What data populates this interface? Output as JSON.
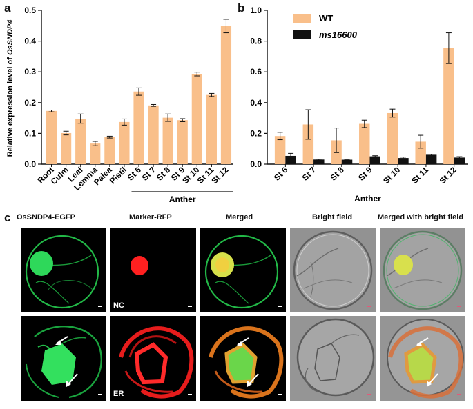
{
  "panel_labels": {
    "a": "a",
    "b": "b",
    "c": "c"
  },
  "colors": {
    "wt_bar": "#F9BF8A",
    "mutant_bar": "#111111",
    "gfp": "#22c84a",
    "rfp": "#ff1f1f",
    "scalebar": "#ffffff",
    "scalebar_bf": "#e25a7a"
  },
  "chart_data": [
    {
      "type": "bar",
      "title": "",
      "ylabel_prefix": "Relative expression level of ",
      "ylabel_gene": "OsSNDP4",
      "xlabel": "",
      "group_label": "Anther",
      "categories": [
        "Root",
        "Culm",
        "Leaf",
        "Lemma",
        "Palea",
        "Pistil",
        "St 6",
        "St 7",
        "St 8",
        "St 9",
        "St 10",
        "St 11",
        "St 12"
      ],
      "values": [
        0.173,
        0.101,
        0.148,
        0.067,
        0.088,
        0.137,
        0.236,
        0.191,
        0.151,
        0.143,
        0.293,
        0.225,
        0.449
      ],
      "errors": [
        0.003,
        0.006,
        0.015,
        0.007,
        0.003,
        0.01,
        0.012,
        0.003,
        0.012,
        0.005,
        0.006,
        0.005,
        0.022
      ],
      "ylim": [
        0,
        0.5
      ],
      "yticks": [
        "0.0",
        "0.1",
        "0.2",
        "0.3",
        "0.4",
        "0.5"
      ]
    },
    {
      "type": "bar",
      "title": "",
      "xlabel": "Anther",
      "ylabel": "",
      "categories": [
        "St 6",
        "St 7",
        "St 8",
        "St 9",
        "St 10",
        "St 11",
        "St 12"
      ],
      "series": [
        {
          "name": "WT",
          "values": [
            0.183,
            0.258,
            0.155,
            0.262,
            0.332,
            0.146,
            0.754
          ],
          "errors": [
            0.024,
            0.096,
            0.08,
            0.024,
            0.026,
            0.042,
            0.1
          ]
        },
        {
          "name": "ms16600",
          "values": [
            0.054,
            0.03,
            0.029,
            0.051,
            0.04,
            0.061,
            0.043
          ],
          "errors": [
            0.016,
            0.003,
            0.003,
            0.004,
            0.006,
            0.004,
            0.006
          ]
        }
      ],
      "ylim": [
        0,
        1.0
      ],
      "yticks": [
        "0.0",
        "0.2",
        "0.4",
        "0.6",
        "0.8",
        "1.0"
      ],
      "legend_position": "top-left"
    }
  ],
  "microscopy": {
    "column_titles": [
      "OsSNDP4-EGFP",
      "Marker-RFP",
      "Merged",
      "Bright field",
      "Merged with bright field"
    ],
    "row_labels": [
      "NC",
      "ER"
    ]
  }
}
